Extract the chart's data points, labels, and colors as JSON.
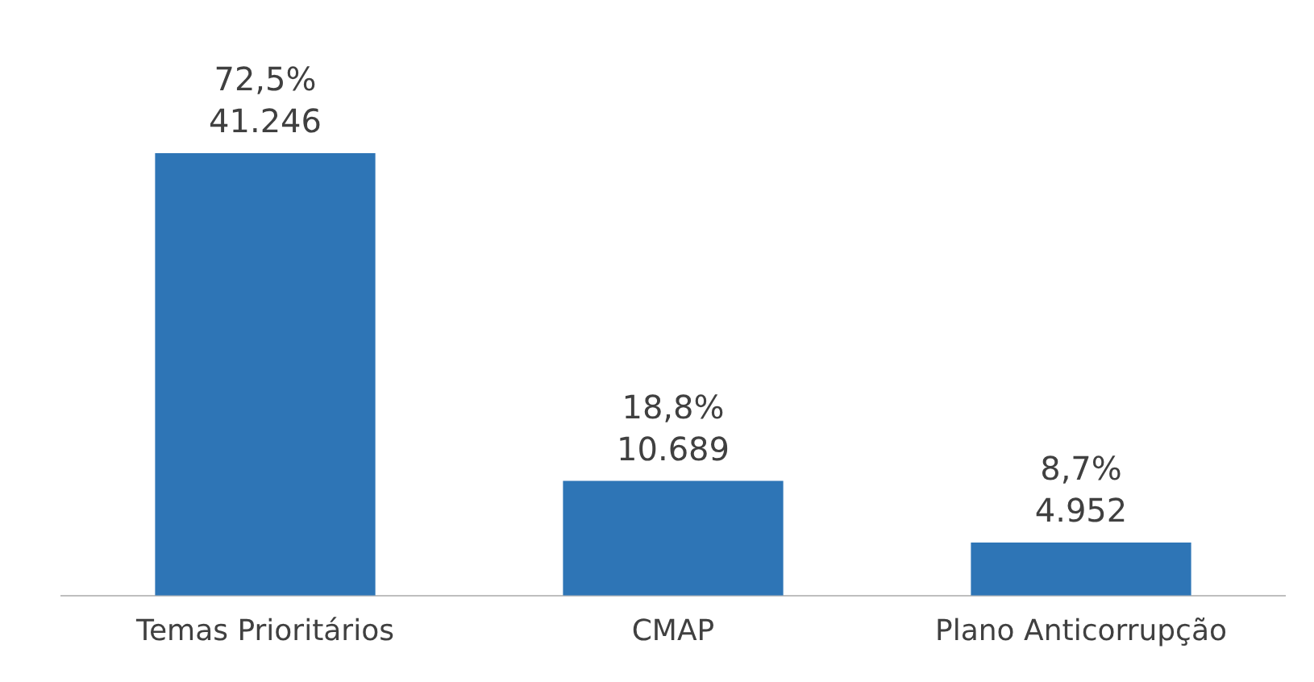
{
  "chart_data": {
    "type": "bar",
    "categories": [
      "Temas Prioritários",
      "CMAP",
      "Plano Anticorrupção"
    ],
    "values": [
      41246,
      10689,
      4952
    ],
    "value_labels": [
      "72,5%\n41.246",
      "18,8%\n10.689",
      "8,7%\n4.952"
    ],
    "color": "#2e75b6",
    "grid": false,
    "legend": false,
    "tick_labels": "x"
  }
}
